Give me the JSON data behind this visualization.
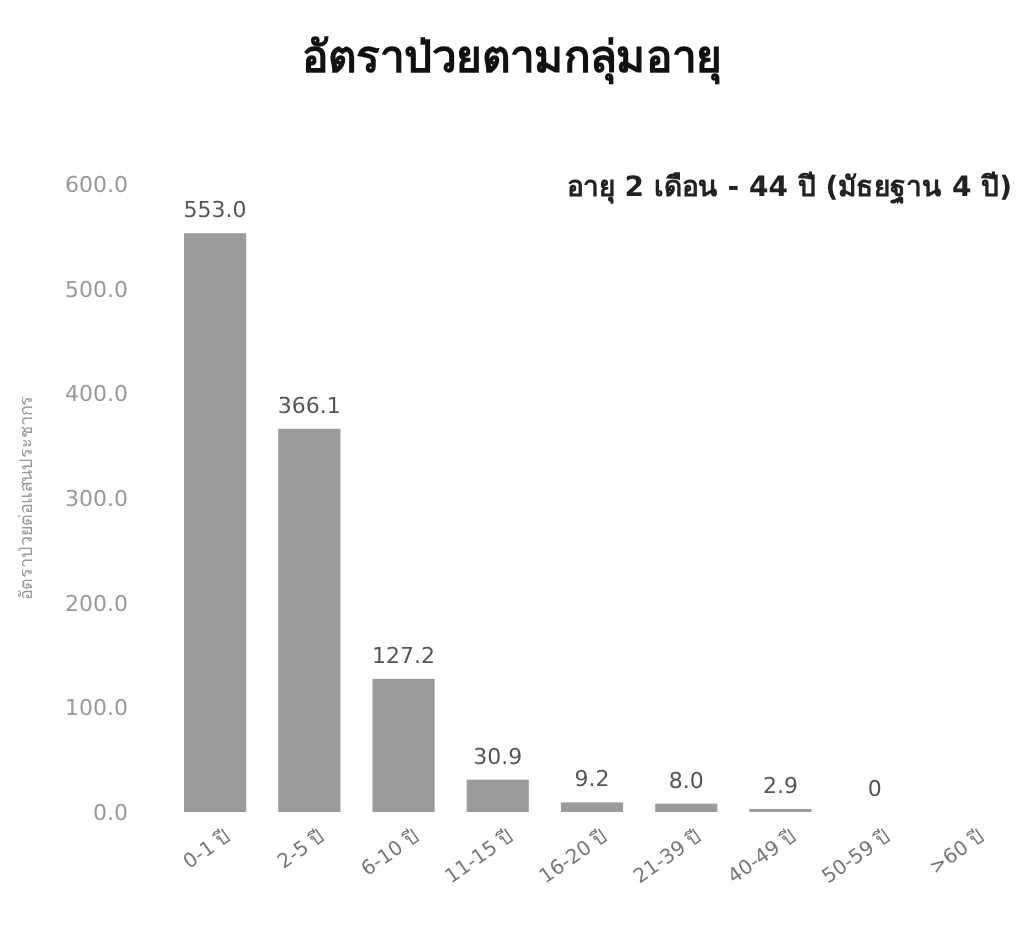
{
  "chart_data": {
    "type": "bar",
    "title": "อัตราป่วยตามกลุ่มอายุ",
    "ylabel": "อัตราป่วยต่อแสนประชากร",
    "annotations": [
      "อายุ 2 เดือน - 44 ปี (มัธยฐาน 4 ปี)"
    ],
    "categories": [
      "0-1 ปี",
      "2-5 ปี",
      "6-10 ปี",
      "11-15 ปี",
      "16-20 ปี",
      "21-39 ปี",
      "40-49 ปี",
      "50-59 ปี",
      ">60 ปี"
    ],
    "values": [
      553.0,
      366.1,
      127.2,
      30.9,
      9.2,
      8.0,
      2.9,
      0,
      null
    ],
    "value_labels": [
      "553.0",
      "366.1",
      "127.2",
      "30.9",
      "9.2",
      "8.0",
      "2.9",
      "0",
      null
    ],
    "color": "#9b9b9b",
    "ylim": [
      0,
      600
    ],
    "yticks": [
      {
        "value": 0,
        "label": "0.0"
      },
      {
        "value": 100,
        "label": "100.0"
      },
      {
        "value": 200,
        "label": "200.0"
      },
      {
        "value": 300,
        "label": "300.0"
      },
      {
        "value": 400,
        "label": "400.0"
      },
      {
        "value": 500,
        "label": "500.0"
      },
      {
        "value": 600,
        "label": "600.0"
      }
    ],
    "grid": false
  }
}
